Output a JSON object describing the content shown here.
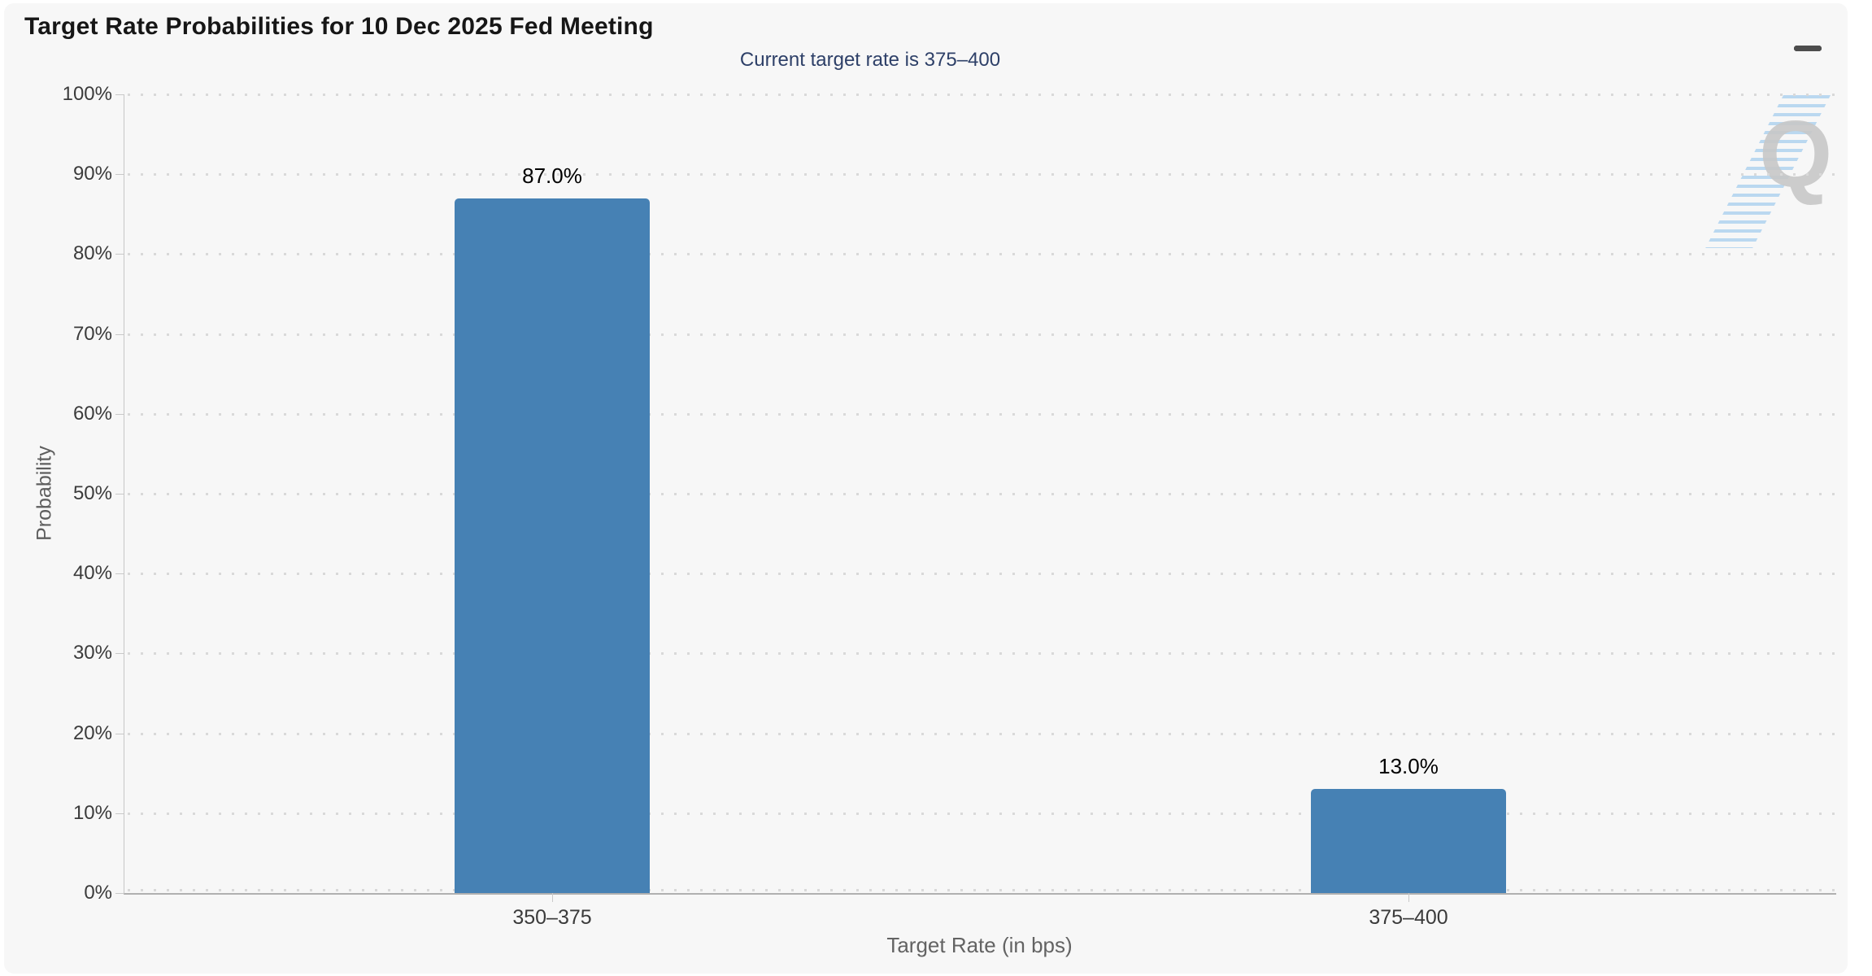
{
  "card": {
    "background": "#f7f7f7",
    "page_background": "#ffffff"
  },
  "toolbar": {
    "menu_icon": "hamburger-icon"
  },
  "watermark": {
    "letter": "Q"
  },
  "chart_data": {
    "type": "bar",
    "title": "Target Rate Probabilities for 10 Dec 2025 Fed Meeting",
    "subtitle": "Current target rate is 375–400",
    "categories": [
      "350–375",
      "375–400"
    ],
    "values": [
      87.0,
      13.0
    ],
    "value_labels": [
      "87.0%",
      "13.0%"
    ],
    "xlabel": "Target Rate (in bps)",
    "ylabel": "Probability",
    "ylim": [
      0,
      100
    ],
    "ytick_step": 10,
    "ytick_suffix": "%",
    "grid": "dotted-horizontal",
    "legend": "none",
    "bar_color": "#4681b4",
    "subtitle_color": "#2e4068",
    "title_color": "#161616",
    "axis_label_color": "#3b3b3b",
    "axis_title_color": "#636363"
  }
}
